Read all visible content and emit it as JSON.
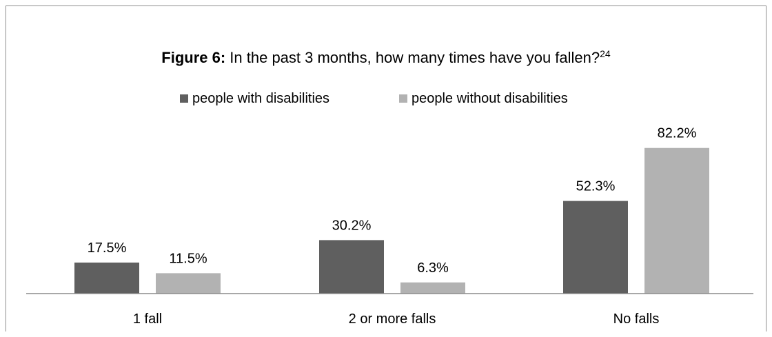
{
  "chart_data": {
    "type": "bar",
    "title_prefix": "Figure 6:",
    "title": " In the past 3 months, how many times have you fallen?",
    "title_superscript": "24",
    "categories": [
      "1 fall",
      "2 or more falls",
      "No falls"
    ],
    "series": [
      {
        "name": "people with disabilities",
        "values": [
          17.5,
          30.2,
          52.3
        ],
        "color": "#5f5f5f"
      },
      {
        "name": "people without disabilities",
        "values": [
          11.5,
          6.3,
          82.2
        ],
        "color": "#b2b2b2"
      }
    ],
    "value_labels": [
      [
        "17.5%",
        "30.2%",
        "52.3%"
      ],
      [
        "11.5%",
        "6.3%",
        "82.2%"
      ]
    ],
    "ylim": [
      0,
      100
    ],
    "legend_position": "top",
    "grid": false,
    "axis_color": "#8c8c8c"
  }
}
